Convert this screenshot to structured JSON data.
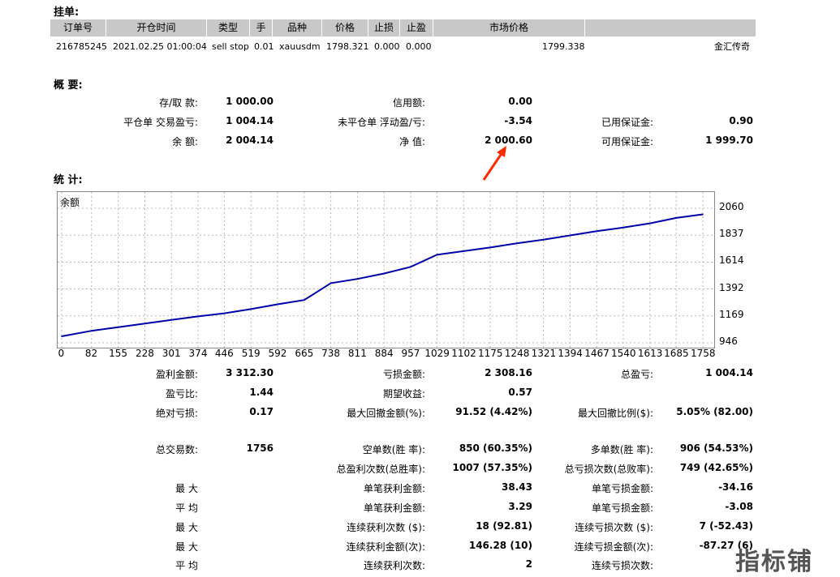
{
  "orders": {
    "title": "挂单:",
    "headers": [
      "订单号",
      "开仓时间",
      "类型",
      "手",
      "品种",
      "价格",
      "止损",
      "止盈",
      "市场价格",
      ""
    ],
    "rows": [
      [
        "216785245",
        "2021.02.25 01:00:04",
        "sell stop",
        "0.01",
        "xauusdm",
        "1798.321",
        "0.000",
        "0.000",
        "1799.338",
        "金汇传奇"
      ]
    ]
  },
  "summary": {
    "title": "概 要:",
    "deposit_label": "存/取 款:",
    "deposit_value": "1 000.00",
    "credit_label": "信用额:",
    "credit_value": "0.00",
    "closed_pl_label": "平仓单 交易盈亏:",
    "closed_pl_value": "1 004.14",
    "floating_pl_label": "未平仓单 浮动盈/亏:",
    "floating_pl_value": "-3.54",
    "margin_used_label": "已用保证金:",
    "margin_used_value": "0.90",
    "balance_label": "余 额:",
    "balance_value": "2 004.14",
    "equity_label": "净 值:",
    "equity_value": "2 000.60",
    "free_margin_label": "可用保证金:",
    "free_margin_value": "1 999.70"
  },
  "stats_title": "统 计:",
  "chart_data": {
    "type": "line",
    "title": "余额",
    "x": [
      0,
      82,
      155,
      228,
      301,
      374,
      446,
      519,
      592,
      665,
      738,
      811,
      884,
      957,
      1029,
      1102,
      1175,
      1248,
      1321,
      1394,
      1467,
      1540,
      1613,
      1685,
      1758
    ],
    "x_tick_labels": [
      "0",
      "82",
      "155",
      "228",
      "301",
      "374",
      "446",
      "519",
      "592",
      "665",
      "738",
      "811",
      "884",
      "957",
      "1029",
      "1102",
      "1175",
      "1248",
      "1321",
      "1394",
      "1467",
      "1540",
      "1613",
      "1685",
      "1758"
    ],
    "y_tick_labels": [
      "2060",
      "1837",
      "1614",
      "1392",
      "1169",
      "946"
    ],
    "ylim": [
      946,
      2060
    ],
    "grid": true,
    "color": "#0000aa",
    "series": [
      {
        "values": [
          1000,
          1045,
          1075,
          1105,
          1135,
          1165,
          1190,
          1225,
          1265,
          1300,
          1440,
          1475,
          1520,
          1575,
          1675,
          1705,
          1735,
          1770,
          1800,
          1835,
          1870,
          1900,
          1935,
          1980,
          2010
        ]
      }
    ]
  },
  "stats": {
    "gross_profit_label": "盈利金额:",
    "gross_profit_value": "3 312.30",
    "gross_loss_label": "亏损金额:",
    "gross_loss_value": "2 308.16",
    "total_pl_label": "总盈亏:",
    "total_pl_value": "1 004.14",
    "profit_factor_label": "盈亏比:",
    "profit_factor_value": "1.44",
    "expected_payoff_label": "期望收益:",
    "expected_payoff_value": "0.57",
    "abs_drawdown_label": "绝对亏损:",
    "abs_drawdown_value": "0.17",
    "max_drawdown_label": "最大回撤金额(%):",
    "max_drawdown_value": "91.52 (4.42%)",
    "rel_drawdown_label": "最大回撤比例($):",
    "rel_drawdown_value": "5.05% (82.00)",
    "total_trades_label": "总交易数:",
    "total_trades_value": "1756",
    "short_label": "空单数(胜 率):",
    "short_value": "850 (60.35%)",
    "long_label": "多单数(胜 率):",
    "long_value": "906 (54.53%)",
    "profit_trades_label": "总盈利次数(总胜率):",
    "profit_trades_value": "1007 (57.35%)",
    "loss_trades_label": "总亏损次数(总败率):",
    "loss_trades_value": "749 (42.65%)",
    "largest_label": "最 大",
    "largest_profit_label": "单笔获利金额:",
    "largest_profit_value": "38.43",
    "largest_loss_label": "单笔亏损金额:",
    "largest_loss_value": "-34.16",
    "average_label": "平 均",
    "avg_profit_label": "单笔获利金额:",
    "avg_profit_value": "3.29",
    "avg_loss_label": "单笔亏损金额:",
    "avg_loss_value": "-3.08",
    "max_label_1": "最 大",
    "max_consec_wins_label": "连续获利次数 ($):",
    "max_consec_wins_value": "18 (92.81)",
    "max_consec_losses_label": "连续亏损次数 ($):",
    "max_consec_losses_value": "7 (-52.43)",
    "max_label_2": "最 大",
    "max_consec_profit_label": "连续获利金额(次):",
    "max_consec_profit_value": "146.28 (10)",
    "max_consec_loss_label": "连续亏损金额(次):",
    "max_consec_loss_value": "-87.27 (6)",
    "avg_label_2": "平 均",
    "avg_consec_wins_label": "连续获利次数:",
    "avg_consec_wins_value": "2",
    "avg_consec_losses_label": "连续亏损次数:"
  },
  "watermark": "指标铺",
  "annotation_color": "#ff2a00"
}
